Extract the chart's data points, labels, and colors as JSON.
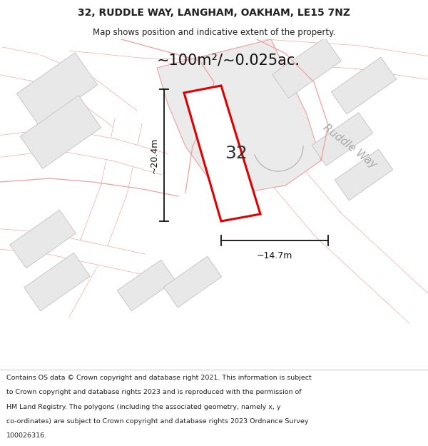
{
  "title": "32, RUDDLE WAY, LANGHAM, OAKHAM, LE15 7NZ",
  "subtitle": "Map shows position and indicative extent of the property.",
  "area_text": "~100m²/~0.025ac.",
  "dim_width": "~14.7m",
  "dim_height": "~20.4m",
  "label_32": "32",
  "road_label": "Ruddle Way",
  "footer_lines": [
    "Contains OS data © Crown copyright and database right 2021. This information is subject",
    "to Crown copyright and database rights 2023 and is reproduced with the permission of",
    "HM Land Registry. The polygons (including the associated geometry, namely x, y",
    "co-ordinates) are subject to Crown copyright and database rights 2023 Ordnance Survey",
    "100026316."
  ],
  "map_bg": "#f8f8f8",
  "plot_fill": "#ffffff",
  "plot_edge": "#dd0000",
  "road_outline_color": "#f0a0a0",
  "road_fill": "#ffffff",
  "building_fill": "#e8e8e8",
  "building_edge": "#c8c8c8",
  "dim_line_color": "#111111",
  "header_bg": "#ffffff",
  "footer_bg": "#ffffff",
  "title_color": "#222222",
  "area_text_color": "#111111",
  "label_color": "#333333",
  "road_label_color": "#aaaaaa",
  "footer_color": "#222222"
}
